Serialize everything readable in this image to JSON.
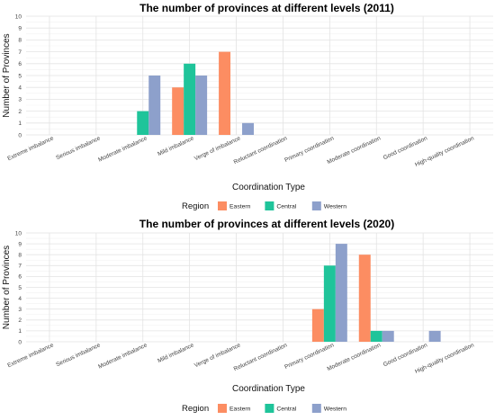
{
  "chart_data": [
    {
      "type": "bar",
      "title": "The number of provinces at different levels (2011)",
      "xlabel": "Coordination Type",
      "ylabel": "Number of Provinces",
      "ylim": [
        0,
        10
      ],
      "yticks": [
        0,
        1,
        2,
        3,
        4,
        5,
        6,
        7,
        8,
        9,
        10
      ],
      "grid": true,
      "legend": {
        "title": "Region",
        "position": "bottom"
      },
      "categories": [
        "Extreme imbalance",
        "Serious imbalance",
        "Moderate imbalance",
        "Mild imbalance",
        "Verge of imbalance",
        "Reluctant coordination",
        "Primary coordination",
        "Moderate coordination",
        "Good coordination",
        "High-quality coordination"
      ],
      "series": [
        {
          "name": "Eastern",
          "color": "#fc8d62",
          "values": [
            0,
            0,
            0,
            4,
            7,
            0,
            0,
            0,
            0,
            0
          ]
        },
        {
          "name": "Central",
          "color": "#1fc49a",
          "values": [
            0,
            0,
            2,
            6,
            0,
            0,
            0,
            0,
            0,
            0
          ]
        },
        {
          "name": "Western",
          "color": "#8da0cb",
          "values": [
            0,
            0,
            5,
            5,
            1,
            0,
            0,
            0,
            0,
            0
          ]
        }
      ]
    },
    {
      "type": "bar",
      "title": "The number of provinces at different levels (2020)",
      "xlabel": "Coordination Type",
      "ylabel": "Number of Provinces",
      "ylim": [
        0,
        10
      ],
      "yticks": [
        0,
        1,
        2,
        3,
        4,
        5,
        6,
        7,
        8,
        9,
        10
      ],
      "grid": true,
      "legend": {
        "title": "Region",
        "position": "bottom"
      },
      "categories": [
        "Extreme imbalance",
        "Serious imbalance",
        "Moderate imbalance",
        "Mild imbalance",
        "Verge of imbalance",
        "Reluctant coordination",
        "Primary coordination",
        "Moderate coordination",
        "Good coordination",
        "High-quality coordination"
      ],
      "series": [
        {
          "name": "Eastern",
          "color": "#fc8d62",
          "values": [
            0,
            0,
            0,
            0,
            0,
            0,
            3,
            8,
            0,
            0
          ]
        },
        {
          "name": "Central",
          "color": "#1fc49a",
          "values": [
            0,
            0,
            0,
            0,
            0,
            0,
            7,
            1,
            0,
            0
          ]
        },
        {
          "name": "Western",
          "color": "#8da0cb",
          "values": [
            0,
            0,
            0,
            0,
            0,
            0,
            9,
            1,
            1,
            0
          ]
        }
      ]
    }
  ]
}
